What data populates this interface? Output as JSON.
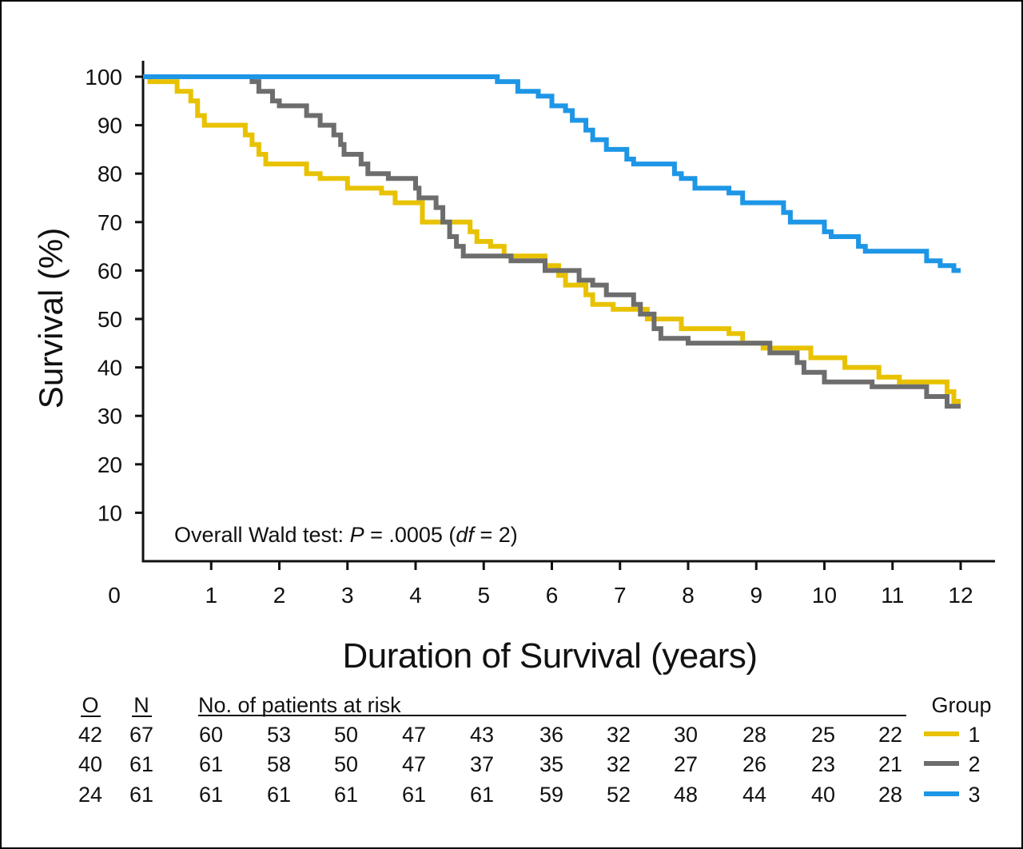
{
  "chart_data": {
    "type": "line",
    "subtype": "kaplan-meier",
    "title": "",
    "xlabel": "Duration of Survival (years)",
    "ylabel": "Survival (%)",
    "xlim": [
      0,
      12.5
    ],
    "ylim": [
      0,
      103
    ],
    "x_origin_label": "0",
    "xticks": [
      "1",
      "2",
      "3",
      "4",
      "5",
      "6",
      "7",
      "8",
      "9",
      "10",
      "11",
      "12"
    ],
    "yticks": [
      "10",
      "20",
      "30",
      "40",
      "50",
      "60",
      "70",
      "80",
      "90",
      "100"
    ],
    "annotation": {
      "prefix": "Overall Wald test: ",
      "p_label": "P",
      "p_value": " = .0005 (",
      "df_label": "df",
      "df_value": " = 2)"
    },
    "series": [
      {
        "name": "1",
        "color": "#E8C200",
        "points": [
          [
            0,
            100
          ],
          [
            0.1,
            100
          ],
          [
            0.1,
            99
          ],
          [
            0.5,
            99
          ],
          [
            0.5,
            97
          ],
          [
            0.7,
            97
          ],
          [
            0.7,
            95
          ],
          [
            0.8,
            95
          ],
          [
            0.8,
            92
          ],
          [
            0.9,
            92
          ],
          [
            0.9,
            90
          ],
          [
            1.5,
            90
          ],
          [
            1.5,
            88
          ],
          [
            1.6,
            88
          ],
          [
            1.6,
            86
          ],
          [
            1.7,
            86
          ],
          [
            1.7,
            84
          ],
          [
            1.8,
            84
          ],
          [
            1.8,
            82
          ],
          [
            2.4,
            82
          ],
          [
            2.4,
            80
          ],
          [
            2.6,
            80
          ],
          [
            2.6,
            79
          ],
          [
            3.0,
            79
          ],
          [
            3.0,
            77
          ],
          [
            3.5,
            77
          ],
          [
            3.5,
            76
          ],
          [
            3.7,
            76
          ],
          [
            3.7,
            74
          ],
          [
            4.1,
            74
          ],
          [
            4.1,
            70
          ],
          [
            4.8,
            70
          ],
          [
            4.8,
            68
          ],
          [
            4.9,
            68
          ],
          [
            4.9,
            66
          ],
          [
            5.1,
            66
          ],
          [
            5.1,
            65
          ],
          [
            5.3,
            65
          ],
          [
            5.3,
            63
          ],
          [
            5.9,
            63
          ],
          [
            5.9,
            61
          ],
          [
            6.1,
            61
          ],
          [
            6.1,
            59
          ],
          [
            6.2,
            59
          ],
          [
            6.2,
            57
          ],
          [
            6.5,
            57
          ],
          [
            6.5,
            55
          ],
          [
            6.6,
            55
          ],
          [
            6.6,
            53
          ],
          [
            6.9,
            53
          ],
          [
            6.9,
            52
          ],
          [
            7.4,
            52
          ],
          [
            7.4,
            50
          ],
          [
            7.9,
            50
          ],
          [
            7.9,
            48
          ],
          [
            8.6,
            48
          ],
          [
            8.6,
            47
          ],
          [
            8.8,
            47
          ],
          [
            8.8,
            45
          ],
          [
            9.1,
            45
          ],
          [
            9.1,
            44
          ],
          [
            9.8,
            44
          ],
          [
            9.8,
            42
          ],
          [
            10.3,
            42
          ],
          [
            10.3,
            40
          ],
          [
            10.8,
            40
          ],
          [
            10.8,
            38
          ],
          [
            11.1,
            38
          ],
          [
            11.1,
            37
          ],
          [
            11.8,
            37
          ],
          [
            11.8,
            35
          ],
          [
            11.9,
            35
          ],
          [
            11.9,
            33
          ],
          [
            12.0,
            33
          ]
        ]
      },
      {
        "name": "2",
        "color": "#6D6D6D",
        "points": [
          [
            0,
            100
          ],
          [
            1.6,
            100
          ],
          [
            1.6,
            99
          ],
          [
            1.7,
            99
          ],
          [
            1.7,
            97
          ],
          [
            1.9,
            97
          ],
          [
            1.9,
            95
          ],
          [
            2.0,
            95
          ],
          [
            2.0,
            94
          ],
          [
            2.4,
            94
          ],
          [
            2.4,
            92
          ],
          [
            2.6,
            92
          ],
          [
            2.6,
            90
          ],
          [
            2.8,
            90
          ],
          [
            2.8,
            88
          ],
          [
            2.9,
            88
          ],
          [
            2.9,
            86
          ],
          [
            2.95,
            86
          ],
          [
            2.95,
            84
          ],
          [
            3.2,
            84
          ],
          [
            3.2,
            82
          ],
          [
            3.3,
            82
          ],
          [
            3.3,
            80
          ],
          [
            3.6,
            80
          ],
          [
            3.6,
            79
          ],
          [
            4.0,
            79
          ],
          [
            4.0,
            77
          ],
          [
            4.05,
            77
          ],
          [
            4.05,
            75
          ],
          [
            4.3,
            75
          ],
          [
            4.3,
            73
          ],
          [
            4.4,
            73
          ],
          [
            4.4,
            70
          ],
          [
            4.5,
            70
          ],
          [
            4.5,
            67
          ],
          [
            4.6,
            67
          ],
          [
            4.6,
            65
          ],
          [
            4.7,
            65
          ],
          [
            4.7,
            63
          ],
          [
            5.4,
            63
          ],
          [
            5.4,
            62
          ],
          [
            5.9,
            62
          ],
          [
            5.9,
            60
          ],
          [
            6.4,
            60
          ],
          [
            6.4,
            58
          ],
          [
            6.6,
            58
          ],
          [
            6.6,
            57
          ],
          [
            6.8,
            57
          ],
          [
            6.8,
            55
          ],
          [
            7.2,
            55
          ],
          [
            7.2,
            53
          ],
          [
            7.3,
            53
          ],
          [
            7.3,
            51
          ],
          [
            7.5,
            51
          ],
          [
            7.5,
            48
          ],
          [
            7.6,
            48
          ],
          [
            7.6,
            46
          ],
          [
            8.0,
            46
          ],
          [
            8.0,
            45
          ],
          [
            9.2,
            45
          ],
          [
            9.2,
            43
          ],
          [
            9.6,
            43
          ],
          [
            9.6,
            41
          ],
          [
            9.7,
            41
          ],
          [
            9.7,
            39
          ],
          [
            10.0,
            39
          ],
          [
            10.0,
            37
          ],
          [
            10.7,
            37
          ],
          [
            10.7,
            36
          ],
          [
            11.5,
            36
          ],
          [
            11.5,
            34
          ],
          [
            11.8,
            34
          ],
          [
            11.8,
            32
          ],
          [
            12.0,
            32
          ]
        ]
      },
      {
        "name": "3",
        "color": "#1E96E6",
        "points": [
          [
            0,
            100
          ],
          [
            5.2,
            100
          ],
          [
            5.2,
            99
          ],
          [
            5.5,
            99
          ],
          [
            5.5,
            97
          ],
          [
            5.8,
            97
          ],
          [
            5.8,
            96
          ],
          [
            6.0,
            96
          ],
          [
            6.0,
            94
          ],
          [
            6.2,
            94
          ],
          [
            6.2,
            93
          ],
          [
            6.3,
            93
          ],
          [
            6.3,
            91
          ],
          [
            6.5,
            91
          ],
          [
            6.5,
            89
          ],
          [
            6.6,
            89
          ],
          [
            6.6,
            87
          ],
          [
            6.8,
            87
          ],
          [
            6.8,
            85
          ],
          [
            7.1,
            85
          ],
          [
            7.1,
            83
          ],
          [
            7.2,
            83
          ],
          [
            7.2,
            82
          ],
          [
            7.8,
            82
          ],
          [
            7.8,
            80
          ],
          [
            7.9,
            80
          ],
          [
            7.9,
            79
          ],
          [
            8.1,
            79
          ],
          [
            8.1,
            77
          ],
          [
            8.6,
            77
          ],
          [
            8.6,
            76
          ],
          [
            8.8,
            76
          ],
          [
            8.8,
            74
          ],
          [
            9.4,
            74
          ],
          [
            9.4,
            72
          ],
          [
            9.5,
            72
          ],
          [
            9.5,
            70
          ],
          [
            10.0,
            70
          ],
          [
            10.0,
            68
          ],
          [
            10.1,
            68
          ],
          [
            10.1,
            67
          ],
          [
            10.5,
            67
          ],
          [
            10.5,
            65
          ],
          [
            10.6,
            65
          ],
          [
            10.6,
            64
          ],
          [
            11.5,
            64
          ],
          [
            11.5,
            62
          ],
          [
            11.7,
            62
          ],
          [
            11.7,
            61
          ],
          [
            11.9,
            61
          ],
          [
            11.9,
            60
          ],
          [
            12.0,
            60
          ]
        ]
      }
    ],
    "risk_table": {
      "col_o": "O",
      "col_n": "N",
      "heading": "No. of patients at risk",
      "group_heading": "Group",
      "rows": [
        {
          "o": "42",
          "n": "67",
          "counts": [
            "60",
            "53",
            "50",
            "47",
            "43",
            "36",
            "32",
            "30",
            "28",
            "25",
            "22"
          ],
          "group": "1",
          "color": "#E8C200"
        },
        {
          "o": "40",
          "n": "61",
          "counts": [
            "61",
            "58",
            "50",
            "47",
            "37",
            "35",
            "32",
            "27",
            "26",
            "23",
            "21"
          ],
          "group": "2",
          "color": "#6D6D6D"
        },
        {
          "o": "24",
          "n": "61",
          "counts": [
            "61",
            "61",
            "61",
            "61",
            "61",
            "59",
            "52",
            "48",
            "44",
            "40",
            "28"
          ],
          "group": "3",
          "color": "#1E96E6"
        }
      ]
    }
  }
}
